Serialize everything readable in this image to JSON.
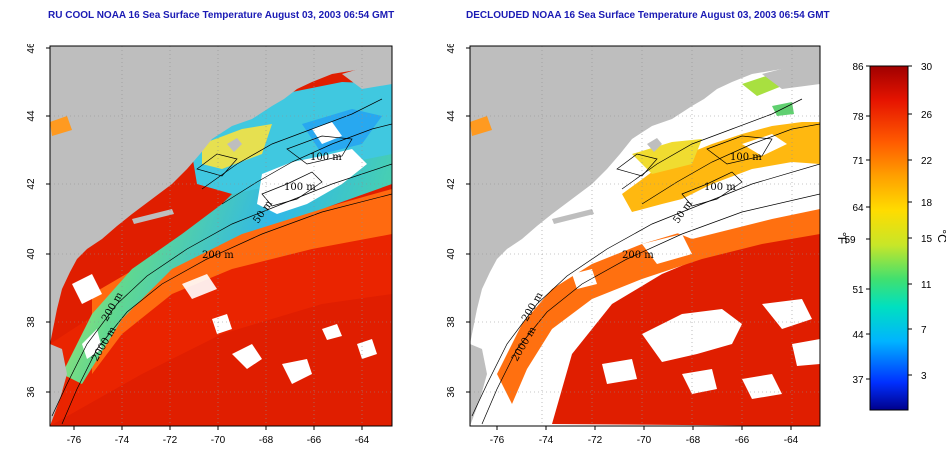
{
  "panels": [
    {
      "title": "RU COOL NOAA 16 Sea Surface Temperature August 03, 2003 06:54 GMT",
      "contour_labels": [
        "100 m",
        "100 m",
        "50 m",
        "200 m",
        "200 m",
        "2000 m"
      ]
    },
    {
      "title": "DECLOUDED NOAA 16 Sea Surface Temperature August 03, 2003 06:54 GMT",
      "contour_labels": [
        "100 m",
        "100 m",
        "50 m",
        "200 m",
        "200 m",
        "2000 m"
      ]
    }
  ],
  "axes": {
    "x_ticks": [
      "-76",
      "-74",
      "-72",
      "-70",
      "-68",
      "-66",
      "-64"
    ],
    "y_ticks": [
      "46",
      "44",
      "42",
      "40",
      "38",
      "36"
    ]
  },
  "colorbar": {
    "unit_f": "°F",
    "unit_c": "°C",
    "f_ticks": [
      "86",
      "78",
      "71",
      "64",
      "59",
      "51",
      "44",
      "37"
    ],
    "c_ticks": [
      "30",
      "26",
      "22",
      "18",
      "15",
      "11",
      "7",
      "3"
    ],
    "colors": [
      "#00008c",
      "#0030ff",
      "#00b4ff",
      "#00e0c0",
      "#40e070",
      "#c8e628",
      "#ffdc00",
      "#ffa000",
      "#ff5a00",
      "#e61400",
      "#a00000"
    ]
  }
}
